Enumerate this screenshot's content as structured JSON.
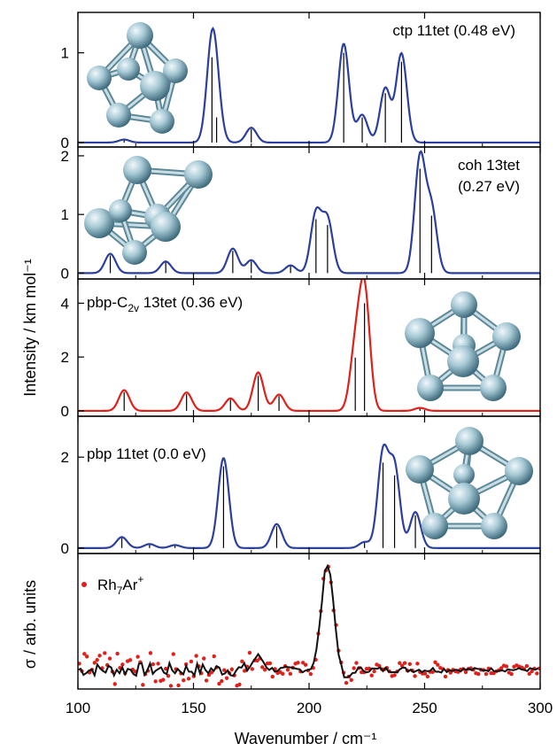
{
  "chart_data": {
    "type": "line",
    "xlabel": "Wavenumber / cm⁻¹",
    "xlim": [
      100,
      300
    ],
    "xticks": [
      100,
      150,
      200,
      250,
      300
    ],
    "ylabel_shared": "Intensity / km mol⁻¹",
    "colors": {
      "theory_blue": "#2b3f9e",
      "theory_red": "#e0201b",
      "experiment_line": "#111111",
      "experiment_points": "#e0201b",
      "sticks": "#000000"
    },
    "panels": [
      {
        "label": "ctp 11tet (0.48 eV)",
        "label_position": "top-right",
        "color": "#2b3f9e",
        "ylim": [
          -0.05,
          1.45
        ],
        "yticks": [
          0,
          1
        ],
        "sticks": [
          {
            "x": 120,
            "y": 0.03
          },
          {
            "x": 158,
            "y": 0.95
          },
          {
            "x": 160,
            "y": 0.28
          },
          {
            "x": 175,
            "y": 0.15
          },
          {
            "x": 215,
            "y": 1.0
          },
          {
            "x": 223,
            "y": 0.28
          },
          {
            "x": 233,
            "y": 0.55
          },
          {
            "x": 240,
            "y": 0.9
          }
        ]
      },
      {
        "label": [
          "coh 13tet",
          "(0.27 eV)"
        ],
        "label_position": "top-right",
        "color": "#2b3f9e",
        "ylim": [
          -0.1,
          2.15
        ],
        "yticks": [
          0,
          1,
          2
        ],
        "sticks": [
          {
            "x": 114,
            "y": 0.3
          },
          {
            "x": 138,
            "y": 0.18
          },
          {
            "x": 167,
            "y": 0.38
          },
          {
            "x": 175,
            "y": 0.2
          },
          {
            "x": 192,
            "y": 0.12
          },
          {
            "x": 203,
            "y": 0.92
          },
          {
            "x": 208,
            "y": 0.82
          },
          {
            "x": 248,
            "y": 1.78
          },
          {
            "x": 253,
            "y": 0.98
          }
        ]
      },
      {
        "label": "pbp-C₂ᵥ 13tet (0.36 eV)",
        "label_main": "pbp-C",
        "label_sub": "2v",
        "label_tail": " 13tet (0.36 eV)",
        "label_position": "top-left",
        "color": "#e0201b",
        "ylim": [
          -0.2,
          4.9
        ],
        "yticks": [
          0,
          2,
          4
        ],
        "sticks": [
          {
            "x": 120,
            "y": 0.7
          },
          {
            "x": 147,
            "y": 0.62
          },
          {
            "x": 166,
            "y": 0.42
          },
          {
            "x": 178,
            "y": 1.3
          },
          {
            "x": 187,
            "y": 0.55
          },
          {
            "x": 220,
            "y": 1.98
          },
          {
            "x": 224,
            "y": 4.0
          },
          {
            "x": 248,
            "y": 0.1
          }
        ]
      },
      {
        "label": "pbp 11tet (0.0 eV)",
        "label_position": "top-left",
        "color": "#2b3f9e",
        "ylim": [
          -0.12,
          2.9
        ],
        "yticks": [
          0,
          2
        ],
        "sticks": [
          {
            "x": 119,
            "y": 0.22
          },
          {
            "x": 131,
            "y": 0.08
          },
          {
            "x": 142,
            "y": 0.06
          },
          {
            "x": 163,
            "y": 1.8
          },
          {
            "x": 186,
            "y": 0.48
          },
          {
            "x": 224,
            "y": 0.12
          },
          {
            "x": 232,
            "y": 1.88
          },
          {
            "x": 237,
            "y": 1.6
          },
          {
            "x": 246,
            "y": 0.72
          }
        ]
      },
      {
        "label": "Rh₇Ar⁺",
        "label_main": "Rh",
        "label_sub": "7",
        "label_mid": "Ar",
        "label_sup": "+",
        "ylabel": "σ / arb. units",
        "ylabel_main": "σ / arb. units",
        "color": "#111111",
        "ylim": [
          -0.3,
          2.5
        ],
        "experiment": true
      }
    ]
  }
}
